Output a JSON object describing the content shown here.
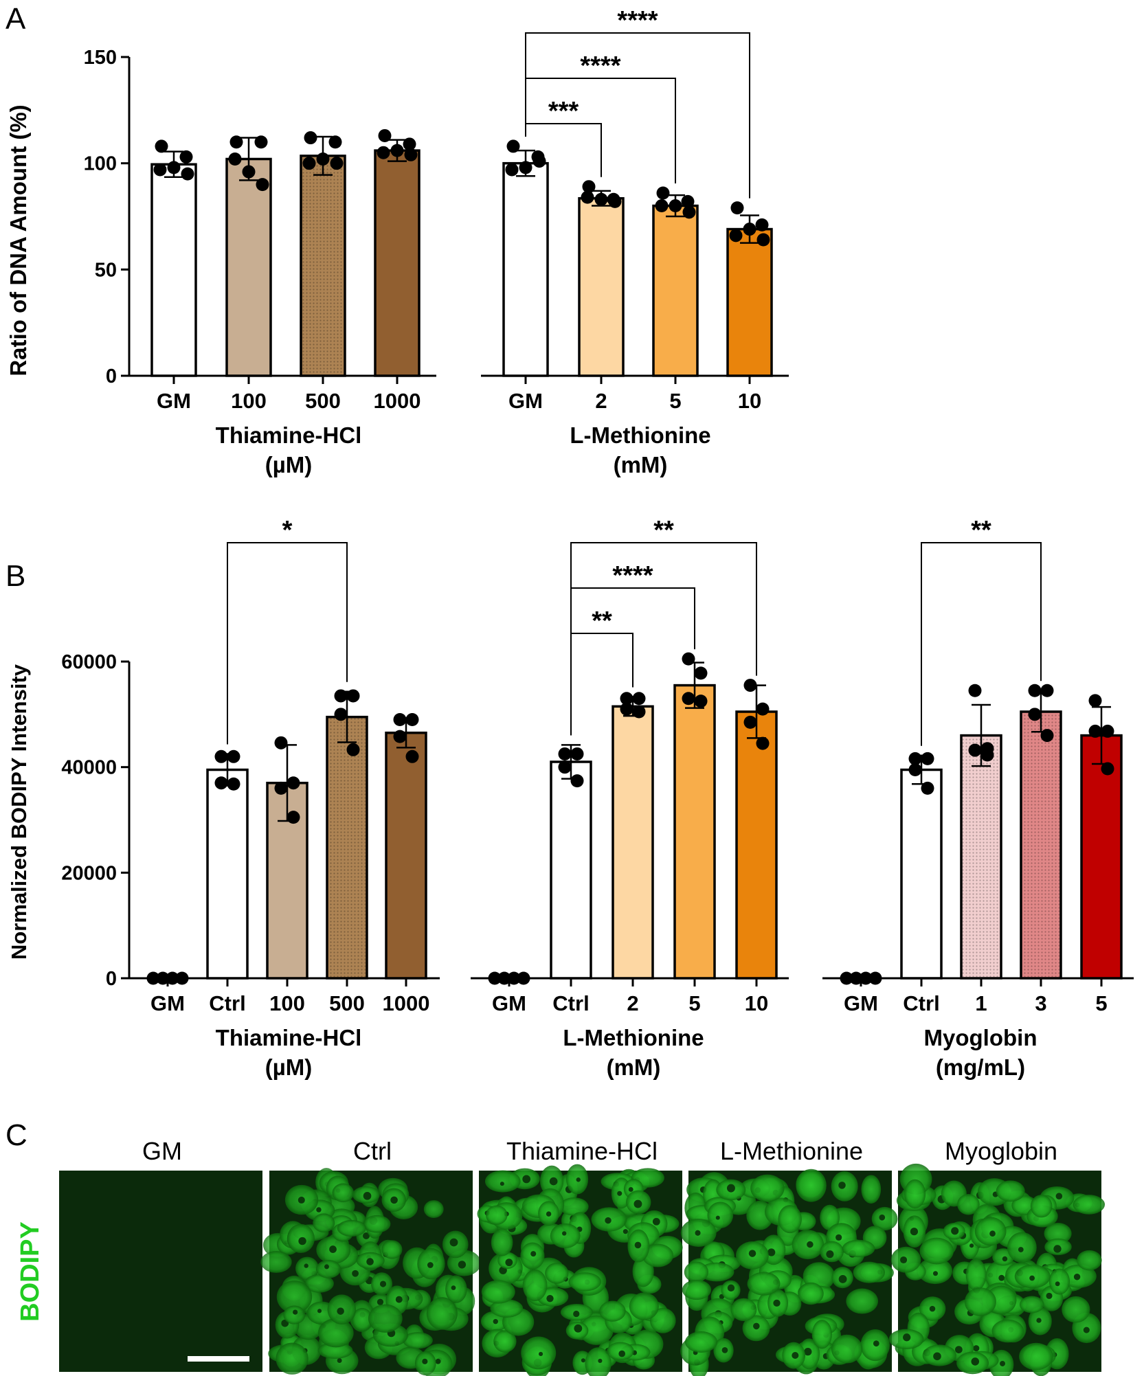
{
  "panel_letters": {
    "a": "A",
    "b": "B",
    "c": "C"
  },
  "colors": {
    "thiamine": [
      "#ffffff",
      "#c8ae92",
      "#ad8353",
      "#915f30"
    ],
    "methionine": [
      "#ffffff",
      "#fdd7a3",
      "#f8ad4a",
      "#e9840c"
    ],
    "myoglobin": [
      "#ffffff",
      "#f1cece",
      "#e08787",
      "#c00000"
    ],
    "bodipy_label": "#22cc22",
    "image_bg": "#0b2a0b"
  },
  "chart_data": [
    {
      "id": "A",
      "type": "bar",
      "ylabel": "Ratio of DNA Amount (%)",
      "ylim": [
        0,
        150
      ],
      "yticks": [
        "0",
        "50",
        "100",
        "150"
      ],
      "groups": [
        {
          "name_line1": "Thiamine-HCl",
          "name_line2": "(µM)",
          "categories": [
            "GM",
            "100",
            "500",
            "1000"
          ],
          "values": [
            99.5,
            102,
            103.5,
            106
          ],
          "sd": [
            6,
            10,
            9,
            5
          ],
          "points": [
            [
              108,
              103,
              97,
              95,
              98
            ],
            [
              110,
              110,
              102,
              90,
              96
            ],
            [
              112,
              110,
              100,
              100,
              102
            ],
            [
              113,
              109,
              105,
              104,
              106
            ]
          ],
          "patterns": [
            "none",
            "none",
            "dots",
            "none"
          ],
          "brackets": []
        },
        {
          "name_line1": "L-Methionine",
          "name_line2": "(mM)",
          "categories": [
            "GM",
            "2",
            "5",
            "10"
          ],
          "values": [
            100,
            83.5,
            80,
            69
          ],
          "sd": [
            6,
            3.5,
            5,
            6.5
          ],
          "points": [
            [
              108,
              103,
              97,
              101,
              98
            ],
            [
              89,
              83,
              84,
              82,
              83
            ],
            [
              86,
              82,
              80,
              77,
              80
            ],
            [
              79,
              71,
              66,
              64,
              69
            ]
          ],
          "patterns": [
            "none",
            "none",
            "none",
            "none"
          ],
          "brackets": [
            {
              "from": 0,
              "to": 1,
              "label": "***"
            },
            {
              "from": 0,
              "to": 2,
              "label": "****"
            },
            {
              "from": 0,
              "to": 3,
              "label": "****"
            }
          ]
        }
      ]
    },
    {
      "id": "B",
      "type": "bar",
      "ylabel": "Normalized BODIPY Intensity",
      "ylim": [
        0,
        60000
      ],
      "yticks": [
        "0",
        "20000",
        "40000",
        "60000"
      ],
      "groups": [
        {
          "name_line1": "Thiamine-HCl",
          "name_line2": "(µM)",
          "categories": [
            "GM",
            "Ctrl",
            "100",
            "500",
            "1000"
          ],
          "values": [
            0,
            39500,
            37000,
            49500,
            46500
          ],
          "sd": [
            0,
            3000,
            7200,
            4800,
            2800
          ],
          "points": [
            [
              0,
              0,
              0,
              0
            ],
            [
              42000,
              42000,
              37000,
              36800
            ],
            [
              44600,
              37000,
              36000,
              30500
            ],
            [
              53500,
              53500,
              50000,
              43300
            ],
            [
              49000,
              49000,
              45800,
              42000
            ]
          ],
          "patterns": [
            "none",
            "none",
            "none",
            "dots",
            "none"
          ],
          "brackets": [
            {
              "from": 1,
              "to": 3,
              "label": "*"
            }
          ]
        },
        {
          "name_line1": "L-Methionine",
          "name_line2": "(mM)",
          "categories": [
            "GM",
            "Ctrl",
            "2",
            "5",
            "10"
          ],
          "values": [
            0,
            41000,
            51500,
            55500,
            50500
          ],
          "sd": [
            0,
            3200,
            1800,
            4300,
            5000
          ],
          "points": [
            [
              0,
              0,
              0,
              0
            ],
            [
              42500,
              42500,
              40000,
              37400
            ],
            [
              53000,
              53000,
              51000,
              50500
            ],
            [
              60500,
              57800,
              53000,
              52500
            ],
            [
              55500,
              51000,
              48500,
              44500
            ]
          ],
          "patterns": [
            "none",
            "none",
            "none",
            "none",
            "none"
          ],
          "brackets": [
            {
              "from": 1,
              "to": 2,
              "label": "**"
            },
            {
              "from": 1,
              "to": 3,
              "label": "****"
            },
            {
              "from": 1,
              "to": 4,
              "label": "**"
            }
          ]
        },
        {
          "name_line1": "Myoglobin",
          "name_line2": "(mg/mL)",
          "categories": [
            "GM",
            "Ctrl",
            "1",
            "3",
            "5"
          ],
          "values": [
            0,
            39500,
            46000,
            50500,
            46000
          ],
          "sd": [
            0,
            2700,
            5800,
            3800,
            5400
          ],
          "points": [
            [
              0,
              0,
              0,
              0
            ],
            [
              41600,
              41600,
              39500,
              36000
            ],
            [
              54500,
              43500,
              43200,
              42300
            ],
            [
              54500,
              54500,
              50000,
              46000
            ],
            [
              52600,
              46800,
              46800,
              39700
            ]
          ],
          "patterns": [
            "none",
            "none",
            "dots",
            "dots",
            "none"
          ],
          "brackets": [
            {
              "from": 1,
              "to": 3,
              "label": "**"
            }
          ]
        }
      ]
    }
  ],
  "panel_c": {
    "row_label": "BODIPY",
    "columns": [
      "GM",
      "Ctrl",
      "Thiamine-HCl",
      "L-Methionine",
      "Myoglobin"
    ],
    "intensity": [
      0,
      0.9,
      1,
      1,
      1
    ]
  }
}
